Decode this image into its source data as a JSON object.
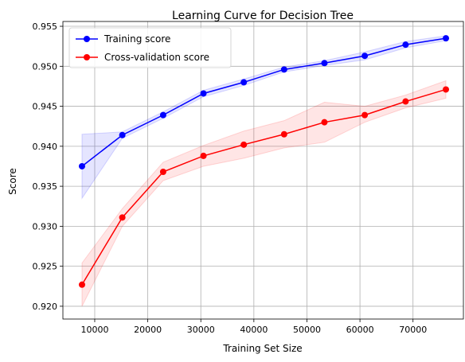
{
  "chart_data": {
    "type": "line",
    "title": "Learning Curve for Decision Tree",
    "xlabel": "Training Set Size",
    "ylabel": "Score",
    "xlim": [
      4000,
      79500
    ],
    "ylim": [
      0.9184,
      0.9556
    ],
    "xticks": [
      10000,
      20000,
      30000,
      40000,
      50000,
      60000,
      70000
    ],
    "xtick_labels": [
      "10000",
      "20000",
      "30000",
      "40000",
      "50000",
      "60000",
      "70000"
    ],
    "yticks": [
      0.92,
      0.925,
      0.93,
      0.935,
      0.94,
      0.945,
      0.95,
      0.955
    ],
    "ytick_labels": [
      "0.920",
      "0.925",
      "0.930",
      "0.935",
      "0.940",
      "0.945",
      "0.950",
      "0.955"
    ],
    "grid": true,
    "legend_position": "top-left",
    "x": [
      7600,
      15200,
      22900,
      30500,
      38100,
      45700,
      53300,
      60900,
      68600,
      76200
    ],
    "series": [
      {
        "name": "Training score",
        "color": "#0000ff",
        "values": [
          0.9375,
          0.9414,
          0.9439,
          0.9466,
          0.948,
          0.9496,
          0.9504,
          0.9513,
          0.9527,
          0.9535
        ],
        "band_lower": [
          0.9335,
          0.941,
          0.9435,
          0.9462,
          0.9476,
          0.9493,
          0.9501,
          0.9508,
          0.9523,
          0.9532
        ],
        "band_upper": [
          0.9415,
          0.9418,
          0.9443,
          0.947,
          0.9484,
          0.9499,
          0.9507,
          0.9518,
          0.9531,
          0.9538
        ]
      },
      {
        "name": "Cross-validation score",
        "color": "#ff0000",
        "values": [
          0.9227,
          0.9311,
          0.9368,
          0.9388,
          0.9402,
          0.9415,
          0.943,
          0.9439,
          0.9456,
          0.9471
        ],
        "band_lower": [
          0.92,
          0.93,
          0.9357,
          0.9375,
          0.9385,
          0.9398,
          0.9405,
          0.943,
          0.9448,
          0.946
        ],
        "band_upper": [
          0.9254,
          0.9322,
          0.938,
          0.9401,
          0.9419,
          0.9432,
          0.9455,
          0.945,
          0.9464,
          0.9482
        ]
      }
    ]
  }
}
